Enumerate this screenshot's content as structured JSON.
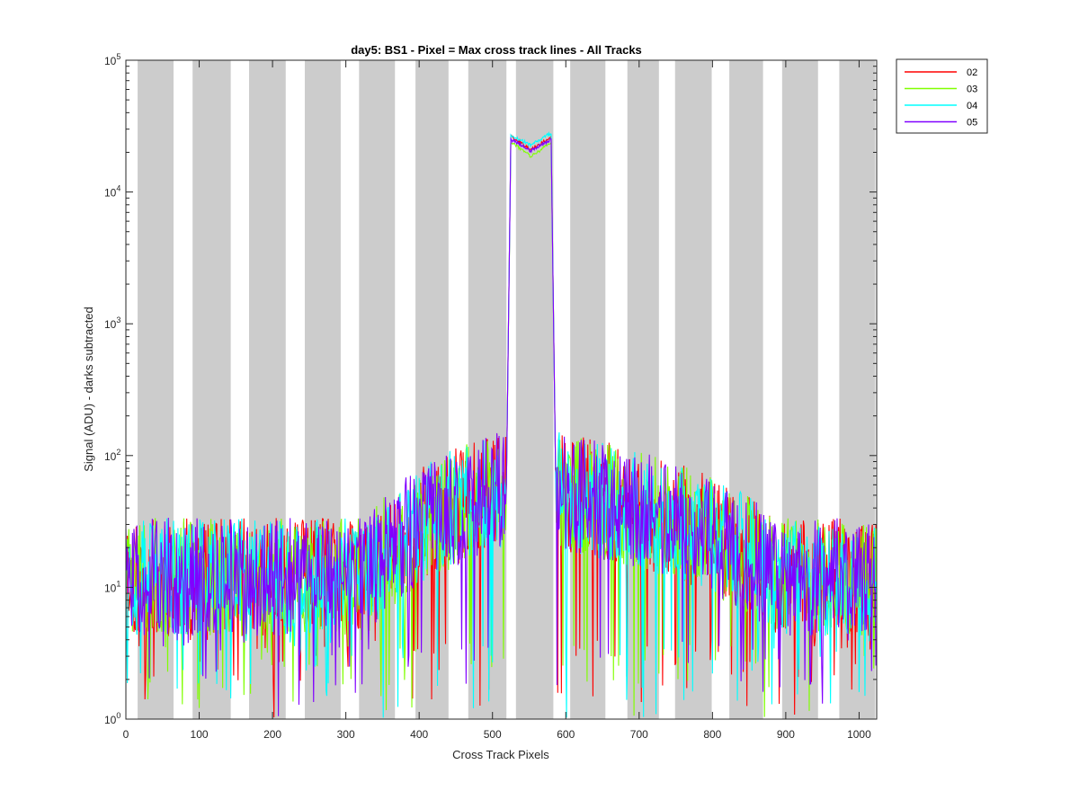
{
  "chart_data": {
    "type": "line",
    "title": "day5: BS1 - Pixel = Max cross track lines - All Tracks",
    "xlabel": "Cross Track Pixels",
    "ylabel": "Signal (ADU) - darks subtracted",
    "xlim": [
      0,
      1024
    ],
    "ylim": [
      1,
      100000
    ],
    "yscale": "log",
    "xticks": [
      "0",
      "100",
      "200",
      "300",
      "400",
      "500",
      "600",
      "700",
      "800",
      "900",
      "1000"
    ],
    "yticks": [
      {
        "base": "10",
        "exp": "0"
      },
      {
        "base": "10",
        "exp": "1"
      },
      {
        "base": "10",
        "exp": "2"
      },
      {
        "base": "10",
        "exp": "3"
      },
      {
        "base": "10",
        "exp": "4"
      },
      {
        "base": "10",
        "exp": "5"
      }
    ],
    "bands": [
      [
        16,
        65
      ],
      [
        91,
        143
      ],
      [
        168,
        218
      ],
      [
        244,
        293
      ],
      [
        318,
        367
      ],
      [
        395,
        440
      ],
      [
        467,
        519
      ],
      [
        532,
        583
      ],
      [
        606,
        654
      ],
      [
        684,
        727
      ],
      [
        749,
        799
      ],
      [
        823,
        869
      ],
      [
        895,
        944
      ],
      [
        973,
        1022
      ]
    ],
    "grid": false,
    "legend_position": "outside-top-right",
    "series": [
      {
        "name": "02",
        "color": "#ff0000",
        "plateau": [
          26500,
          21000,
          26000
        ],
        "seed": 11
      },
      {
        "name": "03",
        "color": "#80ff00",
        "plateau": [
          24000,
          18500,
          23500
        ],
        "seed": 23
      },
      {
        "name": "04",
        "color": "#00ffff",
        "plateau": [
          27000,
          22500,
          28000
        ],
        "seed": 37
      },
      {
        "name": "05",
        "color": "#8000ff",
        "plateau": [
          25000,
          20500,
          25000
        ],
        "seed": 51
      }
    ]
  }
}
